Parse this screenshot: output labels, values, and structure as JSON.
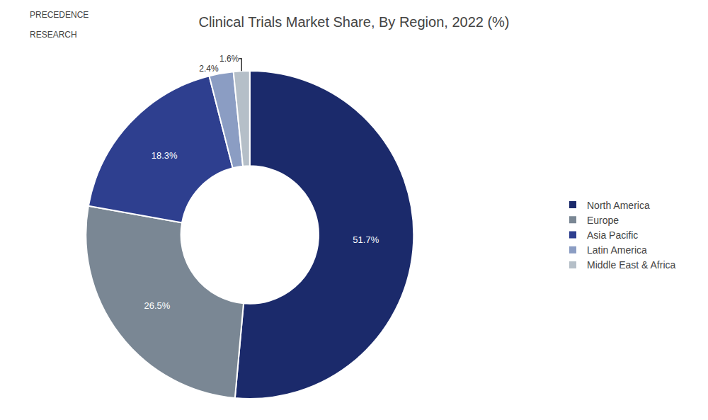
{
  "chart_data": {
    "type": "pie",
    "title": "Clinical Trials Market Share, By Region, 2022 (%)",
    "categories": [
      "North America",
      "Europe",
      "Asia Pacific",
      "Latin America",
      "Middle East & Africa"
    ],
    "values": [
      51.7,
      26.5,
      18.3,
      2.4,
      1.6
    ],
    "value_labels": [
      "51.7%",
      "26.5%",
      "18.3%",
      "2.4%",
      "1.6%"
    ],
    "data_labels": true,
    "colors": [
      "#1b2a6b",
      "#7a8794",
      "#2e3f8f",
      "#8b9dc3",
      "#b5bfc8"
    ],
    "legend": "right",
    "annotations": [
      "PRECEDENCE",
      "RESEARCH"
    ]
  }
}
